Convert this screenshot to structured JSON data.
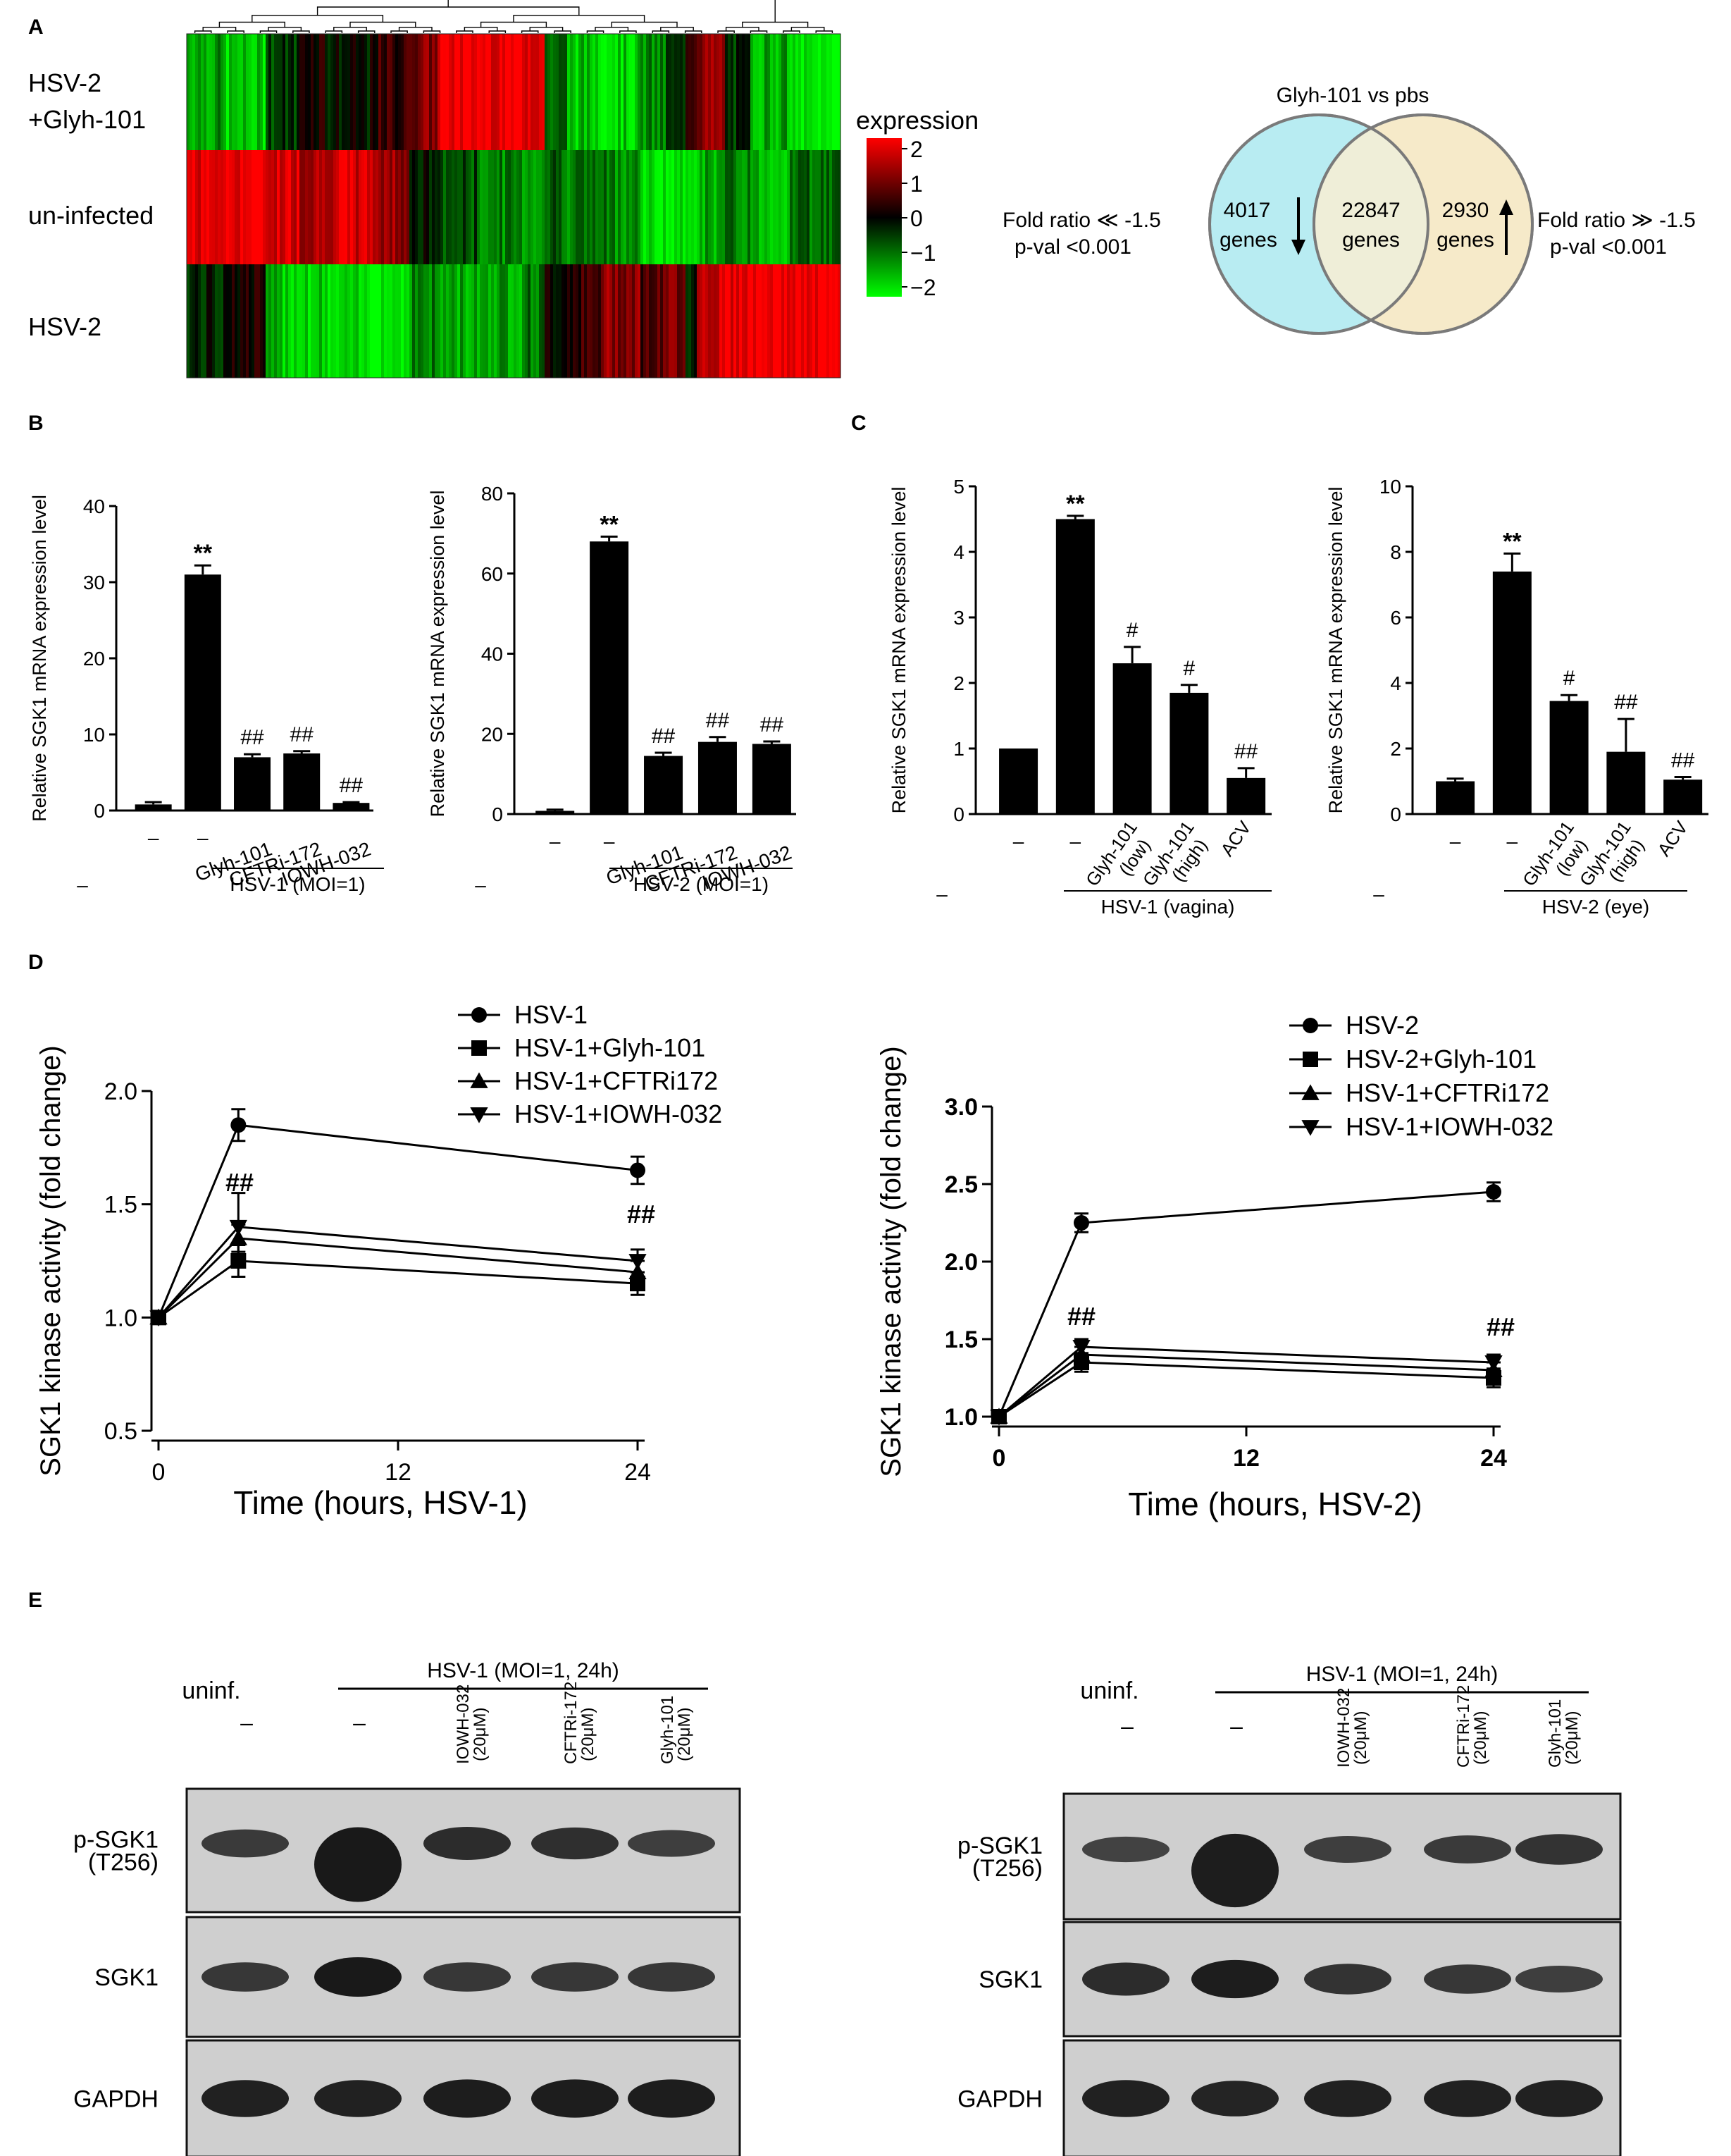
{
  "colors": {
    "red": "#ff0000",
    "green": "#00ff00",
    "black": "#000000",
    "venn_left": "#b8ecf2",
    "venn_right": "#f5e6c0",
    "venn_overlap": "#efeed8"
  },
  "panels": {
    "A": "A",
    "B": "B",
    "C": "C",
    "D": "D",
    "E": "E"
  },
  "heatmap": {
    "rows": [
      "HSV-2\n+Glyh-101",
      "un-infected",
      "HSV-2"
    ],
    "row1a": "HSV-2",
    "row1b": "+Glyh-101",
    "row2": "un-infected",
    "row3": "HSV-2",
    "legend_title": "expression",
    "legend_ticks": [
      "2",
      "1",
      "0",
      "−1",
      "−2"
    ]
  },
  "venn": {
    "title": "Glyh-101 vs pbs",
    "left_num": "4017",
    "left_word": "genes",
    "mid_num": "22847",
    "mid_word": "genes",
    "right_num": "2930",
    "right_word": "genes",
    "left_ann1": "Fold ratio  ≪ -1.5",
    "left_ann2": "p-val <0.001",
    "right_ann1": "Fold ratio ≫  -1.5",
    "right_ann2": "p-val <0.001"
  },
  "chart_data": [
    {
      "id": "B1",
      "type": "bar",
      "ylabel": "Relative SGK1 mRNA expression level",
      "ylim": [
        0,
        40
      ],
      "yticks": [
        "0",
        "10",
        "20",
        "30",
        "40"
      ],
      "categories": [
        "–",
        "–",
        "Glyh-101",
        "CFTRi-172",
        "IOWH-032"
      ],
      "row2": "–",
      "group": "HSV-1 (MOI=1)",
      "values": [
        0.8,
        31,
        7,
        7.5,
        1
      ],
      "errors": [
        0.3,
        1.2,
        0.4,
        0.3,
        0.1
      ],
      "annotations": [
        "",
        "**",
        "##",
        "##",
        "##"
      ]
    },
    {
      "id": "B2",
      "type": "bar",
      "ylabel": "Relative SGK1 mRNA expression level",
      "ylim": [
        0,
        80
      ],
      "yticks": [
        "0",
        "20",
        "40",
        "60",
        "80"
      ],
      "categories": [
        "–",
        "–",
        "Glyh-101",
        "CFTRi-172",
        "IOWH-032"
      ],
      "row2": "–",
      "group": "HSV-2 (MOI=1)",
      "values": [
        0.8,
        68,
        14.5,
        18,
        17.5
      ],
      "errors": [
        0.3,
        1.2,
        0.8,
        1.2,
        0.6
      ],
      "annotations": [
        "",
        "**",
        "##",
        "##",
        "##"
      ]
    },
    {
      "id": "C1",
      "type": "bar",
      "ylabel": "Relative SGK1 mRNA expression level",
      "ylim": [
        0,
        5
      ],
      "yticks": [
        "0",
        "1",
        "2",
        "3",
        "4",
        "5"
      ],
      "categories": [
        "–",
        "–",
        "Glyh-101\n(low)",
        "Glyh-101\n(high)",
        "ACV"
      ],
      "cat_line1": [
        "",
        "",
        "Glyh-101",
        "Glyh-101",
        "ACV"
      ],
      "cat_line2": [
        "",
        "",
        "(low)",
        "(high)",
        ""
      ],
      "row2": "–",
      "group": "HSV-1 (vagina)",
      "values": [
        1.0,
        4.5,
        2.3,
        1.85,
        0.55
      ],
      "errors": [
        0,
        0.05,
        0.25,
        0.12,
        0.15
      ],
      "annotations": [
        "",
        "**",
        "#",
        "#",
        "##"
      ]
    },
    {
      "id": "C2",
      "type": "bar",
      "ylabel": "Relative SGK1 mRNA expression level",
      "ylim": [
        0,
        10
      ],
      "yticks": [
        "0",
        "2",
        "4",
        "6",
        "8",
        "10"
      ],
      "categories": [
        "–",
        "–",
        "Glyh-101\n(low)",
        "Glyh-101\n(high)",
        "ACV"
      ],
      "cat_line1": [
        "",
        "",
        "Glyh-101",
        "Glyh-101",
        "ACV"
      ],
      "cat_line2": [
        "",
        "",
        "(low)",
        "(high)",
        ""
      ],
      "row2": "–",
      "group": "HSV-2 (eye)",
      "values": [
        1.0,
        7.4,
        3.45,
        1.9,
        1.05
      ],
      "errors": [
        0.08,
        0.55,
        0.18,
        1.0,
        0.08
      ],
      "annotations": [
        "",
        "**",
        "#",
        "##",
        "##"
      ]
    },
    {
      "id": "D1",
      "type": "line",
      "xlabel": "Time (hours, HSV-1)",
      "ylabel": "SGK1 kinase activity (fold change)",
      "xlim": [
        0,
        24
      ],
      "ylim": [
        0.5,
        2.0
      ],
      "xticks": [
        "0",
        "12",
        "24"
      ],
      "yticks": [
        "0.5",
        "1.0",
        "1.5",
        "2.0"
      ],
      "x": [
        0,
        4,
        24
      ],
      "series": [
        {
          "name": "HSV-1",
          "marker": "circle",
          "values": [
            1.0,
            1.85,
            1.65
          ],
          "errors": [
            0,
            0.07,
            0.06
          ]
        },
        {
          "name": "HSV-1+Glyh-101",
          "marker": "square",
          "values": [
            1.0,
            1.25,
            1.15
          ],
          "errors": [
            0,
            0.07,
            0.05
          ]
        },
        {
          "name": "HSV-1+CFTRi172",
          "marker": "triangle",
          "values": [
            1.0,
            1.35,
            1.2
          ],
          "errors": [
            0,
            0.06,
            0.05
          ]
        },
        {
          "name": "HSV-1+IOWH-032",
          "marker": "triangle-down",
          "values": [
            1.0,
            1.4,
            1.25
          ],
          "errors": [
            0,
            0.15,
            0.05
          ]
        }
      ],
      "annotations": [
        "##",
        "##"
      ]
    },
    {
      "id": "D2",
      "type": "line",
      "xlabel": "Time (hours, HSV-2)",
      "ylabel": "SGK1 kinase activity (fold change)",
      "xlim": [
        0,
        24
      ],
      "ylim": [
        1.0,
        3.0
      ],
      "xticks": [
        "0",
        "12",
        "24"
      ],
      "yticks": [
        "1.0",
        "1.5",
        "2.0",
        "2.5",
        "3.0"
      ],
      "x": [
        0,
        4,
        24
      ],
      "series": [
        {
          "name": "HSV-2",
          "marker": "circle",
          "values": [
            1.0,
            2.25,
            2.45
          ],
          "errors": [
            0,
            0.06,
            0.06
          ]
        },
        {
          "name": "HSV-2+Glyh-101",
          "marker": "square",
          "values": [
            1.0,
            1.35,
            1.25
          ],
          "errors": [
            0,
            0.06,
            0.06
          ]
        },
        {
          "name": "HSV-1+CFTRi172",
          "marker": "triangle",
          "values": [
            1.0,
            1.4,
            1.3
          ],
          "errors": [
            0,
            0.05,
            0.05
          ]
        },
        {
          "name": "HSV-1+IOWH-032",
          "marker": "triangle-down",
          "values": [
            1.0,
            1.45,
            1.35
          ],
          "errors": [
            0,
            0.05,
            0.05
          ]
        }
      ],
      "annotations": [
        "##",
        "##"
      ]
    }
  ],
  "western": [
    {
      "group": "HSV-1 (MOI=1, 24h)",
      "uninf": "uninf.",
      "lanes": [
        "–",
        "–",
        "IOWH-032\n(20μM)",
        "CFTRi-172\n(20μM)",
        "Glyh-101\n(20μM)"
      ],
      "lane_a": [
        "",
        "",
        "IOWH-032",
        "CFTRi-172",
        "Glyh-101"
      ],
      "lane_b": [
        "",
        "",
        "(20μM)",
        "(20μM)",
        "(20μM)"
      ],
      "rows": [
        "p-SGK1\n(T256)",
        "SGK1",
        "GAPDH"
      ],
      "row1a": "p-SGK1",
      "row1b": "(T256)",
      "row2": "SGK1",
      "row3": "GAPDH",
      "intensity": [
        [
          0.55,
          1.0,
          0.75,
          0.7,
          0.5
        ],
        [
          0.6,
          1.0,
          0.6,
          0.6,
          0.6
        ],
        [
          0.9,
          0.9,
          0.95,
          0.95,
          0.95
        ]
      ]
    },
    {
      "group": "HSV-1 (MOI=1, 24h)",
      "uninf": "uninf.",
      "lanes": [
        "–",
        "–",
        "IOWH-032\n(20μM)",
        "CFTRi-172\n(20μM)",
        "Glyh-101\n(20μM)"
      ],
      "lane_a": [
        "",
        "",
        "IOWH-032",
        "CFTRi-172",
        "Glyh-101"
      ],
      "lane_b": [
        "",
        "",
        "(20μM)",
        "(20μM)",
        "(20μM)"
      ],
      "rows": [
        "p-SGK1\n(T256)",
        "SGK1",
        "GAPDH"
      ],
      "row1a": "p-SGK1",
      "row1b": "(T256)",
      "row2": "SGK1",
      "row3": "GAPDH",
      "intensity": [
        [
          0.45,
          0.95,
          0.5,
          0.55,
          0.65
        ],
        [
          0.75,
          0.95,
          0.65,
          0.6,
          0.5
        ],
        [
          0.9,
          0.85,
          0.9,
          0.9,
          0.9
        ]
      ]
    }
  ]
}
